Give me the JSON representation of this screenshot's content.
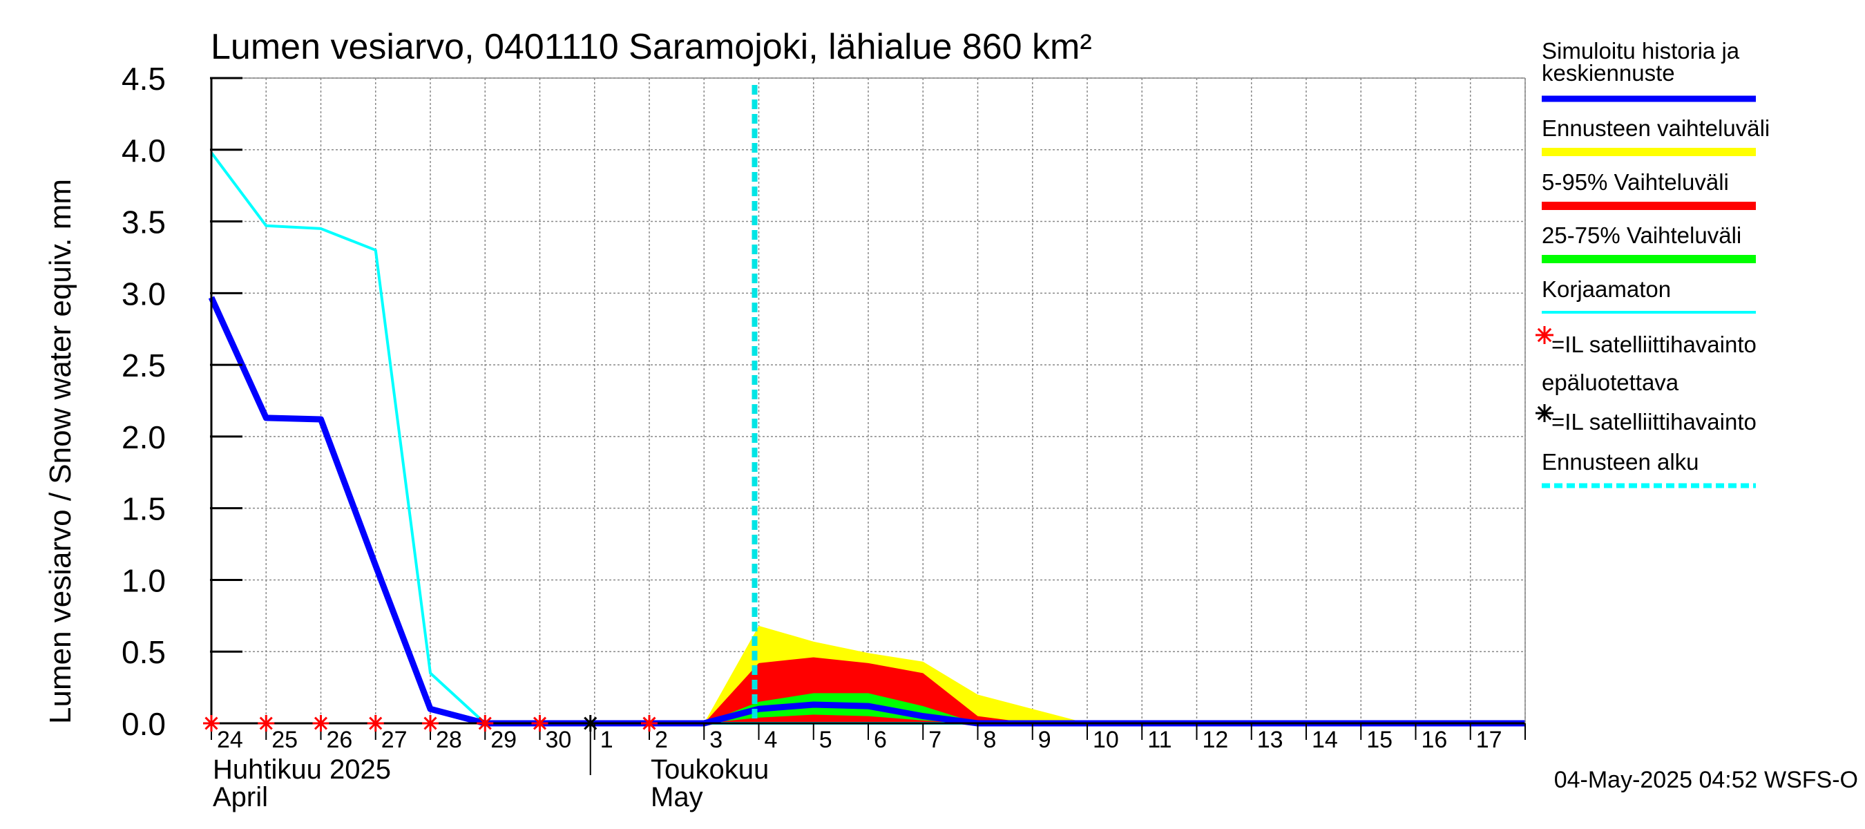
{
  "chart_data": {
    "type": "area",
    "title": "Lumen vesiarvo, 0401110 Saramojoki, lähialue 860 km²",
    "ylabel": "Lumen vesiarvo / Snow water equiv.    mm",
    "ylim": [
      0,
      4.5
    ],
    "yticks": [
      "0.0",
      "0.5",
      "1.0",
      "1.5",
      "2.0",
      "2.5",
      "3.0",
      "3.5",
      "4.0",
      "4.5"
    ],
    "xlim": [
      24,
      48
    ],
    "xtick_labels": [
      "24",
      "25",
      "26",
      "27",
      "28",
      "29",
      "30",
      "1",
      "2",
      "3",
      "4",
      "5",
      "6",
      "7",
      "8",
      "9",
      "10",
      "11",
      "12",
      "13",
      "14",
      "15",
      "16",
      "17"
    ],
    "month_labels": [
      {
        "line1": "Huhtikuu  2025",
        "line2": "April"
      },
      {
        "line1": "Toukokuu",
        "line2": "May"
      }
    ],
    "grid": true,
    "forecast_start_x": 34,
    "series": [
      {
        "name": "Simuloitu historia ja keskiennuste",
        "color": "#0000ff",
        "role": "mean",
        "x": [
          24,
          25,
          26,
          27,
          28,
          29,
          30,
          31,
          32,
          33,
          34,
          35,
          36,
          37,
          38,
          39,
          48
        ],
        "y": [
          2.97,
          2.13,
          2.12,
          1.1,
          0.1,
          0.0,
          0.0,
          0.0,
          0.0,
          0.0,
          0.1,
          0.13,
          0.12,
          0.05,
          0.0,
          0.0,
          0.0
        ]
      },
      {
        "name": "Korjaamaton",
        "color": "#00ffff",
        "role": "uncorrected",
        "x": [
          24,
          25,
          26,
          27,
          28,
          29,
          30,
          31,
          32,
          33,
          48
        ],
        "y": [
          3.98,
          3.47,
          3.45,
          3.3,
          0.35,
          0.0,
          0.0,
          0.0,
          0.0,
          0.0,
          0.0
        ]
      },
      {
        "name": "Ennusteen vaihteluväli",
        "color": "#ffff00",
        "role": "band",
        "x": [
          33,
          34,
          35,
          36,
          37,
          38,
          39,
          40,
          48
        ],
        "lower": [
          0,
          0,
          0,
          0,
          0,
          0,
          0,
          0,
          0
        ],
        "upper": [
          0,
          0.68,
          0.57,
          0.49,
          0.43,
          0.2,
          0.1,
          0,
          0
        ]
      },
      {
        "name": "5-95% Vaihteluväli",
        "color": "#ff0000",
        "role": "band",
        "x": [
          33,
          34,
          35,
          36,
          37,
          38,
          39
        ],
        "lower": [
          0,
          0,
          0,
          0,
          0,
          0,
          0
        ],
        "upper": [
          0,
          0.42,
          0.46,
          0.42,
          0.35,
          0.05,
          0
        ]
      },
      {
        "name": "25-75% Vaihteluväli",
        "color": "#00ff00",
        "role": "band",
        "x": [
          33,
          34,
          35,
          36,
          37,
          38
        ],
        "lower": [
          0,
          0.04,
          0.06,
          0.05,
          0.02,
          0
        ],
        "upper": [
          0,
          0.15,
          0.21,
          0.21,
          0.12,
          0
        ]
      }
    ],
    "satellite_obs": {
      "red_x": [
        24,
        25,
        26,
        27,
        28,
        29,
        30,
        32
      ],
      "black_x": [
        31
      ]
    },
    "legend": [
      {
        "label": "Simuloitu historia ja keskiennuste",
        "symbol": "line-thick",
        "color": "#0000ff"
      },
      {
        "label": "Ennusteen vaihteluväli",
        "symbol": "line-thick",
        "color": "#ffff00"
      },
      {
        "label": "5-95% Vaihteluväli",
        "symbol": "line-thick",
        "color": "#ff0000"
      },
      {
        "label": "25-75% Vaihteluväli",
        "symbol": "line-thick",
        "color": "#00ff00"
      },
      {
        "label": "Korjaamaton",
        "symbol": "line-thin",
        "color": "#00ffff"
      },
      {
        "label": "=IL satelliittihavainto",
        "symbol": "star",
        "color": "#ff0000"
      },
      {
        "label": "epäluotettava",
        "symbol": "none",
        "color": "#000000"
      },
      {
        "label": "=IL satelliittihavainto",
        "symbol": "star",
        "color": "#000000"
      },
      {
        "label": "Ennusteen alku",
        "symbol": "line-dashed",
        "color": "#00ffff"
      }
    ],
    "footer": "04-May-2025 04:52 WSFS-O"
  }
}
